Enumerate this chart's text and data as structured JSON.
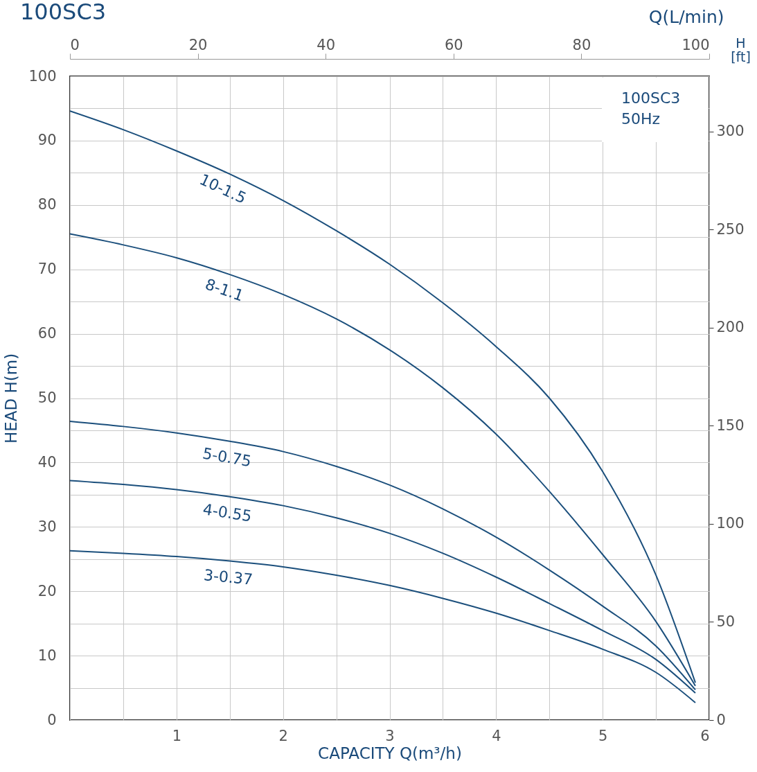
{
  "chart_data": {
    "type": "line",
    "title": "100SC3",
    "xlabel": "CAPACITY Q(m³/h)",
    "ylabel": "HEAD H(m)",
    "x2label": "Q(L/min)",
    "y2label": "H [ft]",
    "annotations": [
      "100SC3",
      "50Hz"
    ],
    "x": [
      0,
      0.5,
      1,
      1.5,
      2,
      2.5,
      3,
      3.5,
      4,
      4.5,
      5,
      5.5,
      5.87
    ],
    "series": [
      {
        "name": "10-1.5",
        "color": "#1b4f7c",
        "values": [
          94.6,
          91.7,
          88.4,
          84.8,
          80.7,
          76.0,
          70.8,
          64.8,
          58.0,
          50.0,
          38.6,
          22.5,
          5.8
        ]
      },
      {
        "name": "8-1.1",
        "color": "#1b4f7c",
        "values": [
          75.5,
          73.8,
          71.8,
          69.2,
          66.1,
          62.3,
          57.5,
          51.6,
          44.4,
          35.5,
          25.7,
          15.3,
          5.3
        ]
      },
      {
        "name": "5-0.75",
        "color": "#1b4f7c",
        "values": [
          46.4,
          45.6,
          44.6,
          43.3,
          41.7,
          39.4,
          36.5,
          32.8,
          28.4,
          23.3,
          17.7,
          11.5,
          4.7
        ]
      },
      {
        "name": "4-0.55",
        "color": "#1b4f7c",
        "values": [
          37.2,
          36.6,
          35.8,
          34.7,
          33.3,
          31.4,
          29.0,
          25.9,
          22.2,
          18.1,
          13.9,
          9.4,
          4.2
        ]
      },
      {
        "name": "3-0.37",
        "color": "#1b4f7c",
        "values": [
          26.3,
          25.9,
          25.4,
          24.7,
          23.8,
          22.5,
          20.9,
          18.9,
          16.6,
          13.9,
          11.0,
          7.4,
          2.7
        ]
      }
    ],
    "xlim": [
      0,
      6
    ],
    "ylim": [
      0,
      100
    ],
    "xticks": [
      {
        "value": 0,
        "label": null
      },
      {
        "value": 0.5,
        "label": null
      },
      1,
      {
        "value": 1.5,
        "label": null
      },
      2,
      {
        "value": 2.5,
        "label": null
      },
      3,
      {
        "value": 3.5,
        "label": null
      },
      4,
      {
        "value": 4.5,
        "label": null
      },
      5,
      {
        "value": 5.5,
        "label": null
      },
      6
    ],
    "yticks": [
      0,
      {
        "value": 5,
        "label": null
      },
      10,
      {
        "value": 15,
        "label": null
      },
      20,
      {
        "value": 25,
        "label": null
      },
      30,
      {
        "value": 35,
        "label": null
      },
      40,
      {
        "value": 45,
        "label": null
      },
      50,
      {
        "value": 55,
        "label": null
      },
      60,
      {
        "value": 65,
        "label": null
      },
      70,
      {
        "value": 75,
        "label": null
      },
      80,
      {
        "value": 85,
        "label": null
      },
      90,
      {
        "value": 95,
        "label": null
      },
      100
    ],
    "x2lim": [
      0,
      100
    ],
    "x2ticks": [
      0,
      20,
      40,
      60,
      80,
      100
    ],
    "y2lim": [
      0,
      328.08
    ],
    "y2ticks": [
      0,
      50,
      100,
      150,
      200,
      250,
      300
    ],
    "grid": true,
    "marker": "none",
    "line_style": "solid"
  }
}
